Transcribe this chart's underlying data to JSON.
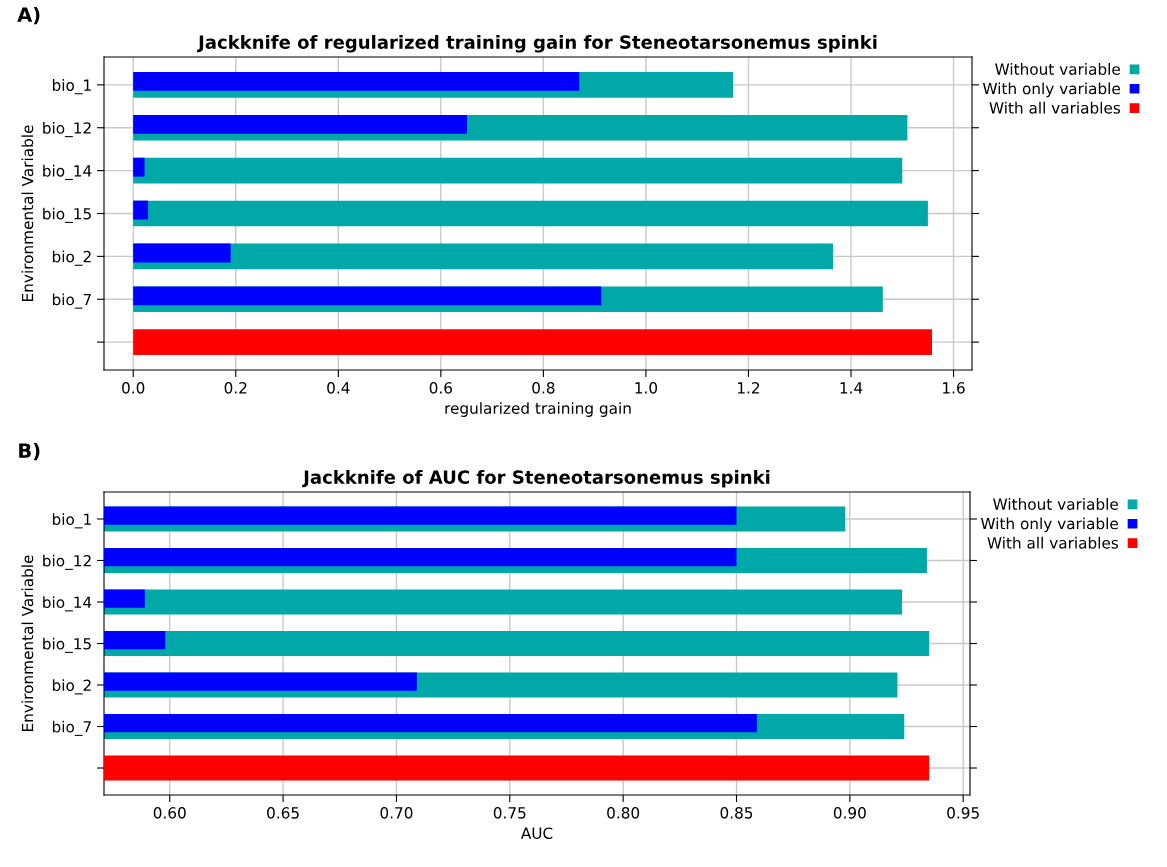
{
  "chart_data": [
    {
      "type": "bar",
      "orientation": "horizontal",
      "title": "Jackknife of regularized training gain for Steneotarsonemus spinki",
      "xlabel": "regularized training gain",
      "ylabel": "Environmental Variable",
      "annotations": [
        "A)"
      ],
      "categories": [
        "bio_1",
        "bio_12",
        "bio_14",
        "bio_15",
        "bio_2",
        "bio_7",
        null
      ],
      "series": [
        {
          "name": "Without variable",
          "color": "#00a8a8",
          "values": [
            1.17,
            1.51,
            1.5,
            1.55,
            1.365,
            1.462,
            null
          ]
        },
        {
          "name": "With only variable",
          "color": "#0000ff",
          "values": [
            0.87,
            0.651,
            0.022,
            0.029,
            0.19,
            0.913,
            null
          ]
        },
        {
          "name": "With all variables",
          "color": "#ff0000",
          "values": [
            null,
            null,
            null,
            null,
            null,
            null,
            1.558
          ]
        }
      ],
      "xlim": [
        -0.057,
        1.636
      ],
      "xticks": [
        {
          "value": 0,
          "label": "0.0"
        },
        0.2,
        0.4,
        0.6,
        0.8,
        {
          "value": 1,
          "label": "1.0"
        },
        1.2,
        1.4,
        1.6
      ],
      "grid": true,
      "legend": "right"
    },
    {
      "type": "bar",
      "orientation": "horizontal",
      "title": "Jackknife of AUC for Steneotarsonemus spinki",
      "xlabel": "AUC",
      "ylabel": "Environmental Variable",
      "annotations": [
        "B)"
      ],
      "categories": [
        "bio_1",
        "bio_12",
        "bio_14",
        "bio_15",
        "bio_2",
        "bio_7",
        null
      ],
      "series": [
        {
          "name": "Without variable",
          "color": "#00a8a8",
          "values": [
            0.898,
            0.934,
            0.923,
            0.935,
            0.921,
            0.924,
            null
          ]
        },
        {
          "name": "With only variable",
          "color": "#0000ff",
          "values": [
            0.85,
            0.85,
            0.589,
            0.598,
            0.709,
            0.859,
            null
          ]
        },
        {
          "name": "With all variables",
          "color": "#ff0000",
          "values": [
            null,
            null,
            null,
            null,
            null,
            null,
            0.935
          ]
        }
      ],
      "xlim": [
        0.571,
        0.953
      ],
      "xticks": [
        {
          "value": 0.6,
          "label": "0.60"
        },
        0.65,
        {
          "value": 0.7,
          "label": "0.70"
        },
        0.75,
        {
          "value": 0.8,
          "label": "0.80"
        },
        0.85,
        {
          "value": 0.9,
          "label": "0.90"
        },
        0.95
      ],
      "grid": true,
      "legend": "right"
    }
  ]
}
